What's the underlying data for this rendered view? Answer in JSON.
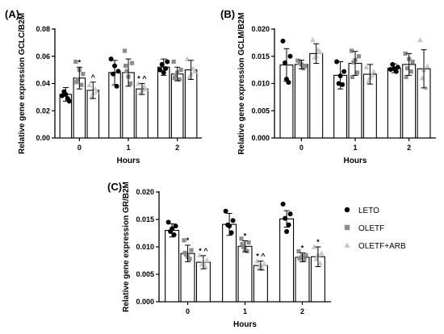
{
  "chart_data": [
    {
      "panel": "(A)",
      "type": "bar",
      "ylabel": "Relative gene expression GCLC/B2M",
      "xlabel": "Hours",
      "categories": [
        "0",
        "1",
        "2"
      ],
      "ylim": [
        0,
        0.08
      ],
      "yticks": [
        "0.00",
        "0.02",
        "0.04",
        "0.06",
        "0.08"
      ],
      "grid": false,
      "series": [
        {
          "name": "LETO",
          "values": [
            0.032,
            0.048,
            0.052
          ],
          "errors": [
            0.005,
            0.009,
            0.006
          ],
          "points": [
            [
              0.031,
              0.027,
              0.034,
              0.029,
              0.032
            ],
            [
              0.058,
              0.049,
              0.047,
              0.038,
              0.053
            ],
            [
              0.05,
              0.056,
              0.054,
              0.051,
              0.048
            ]
          ],
          "annotations": [
            "",
            "",
            ""
          ]
        },
        {
          "name": "OLETF",
          "values": [
            0.044,
            0.048,
            0.047
          ],
          "errors": [
            0.008,
            0.01,
            0.005
          ],
          "points": [
            [
              0.056,
              0.047,
              0.043,
              0.039,
              0.05,
              0.041
            ],
            [
              0.064,
              0.055,
              0.049,
              0.04,
              0.045,
              0.053
            ],
            [
              0.056,
              0.05,
              0.046,
              0.043,
              0.048,
              0.044
            ]
          ],
          "annotations": [
            "*",
            "",
            ""
          ]
        },
        {
          "name": "OLETF+ARB",
          "values": [
            0.035,
            0.036,
            0.05
          ],
          "errors": [
            0.006,
            0.004,
            0.007
          ],
          "points": [
            [
              0.039,
              0.034,
              0.03,
              0.036,
              0.033
            ],
            [
              0.04,
              0.036,
              0.033,
              0.038,
              0.035
            ],
            [
              0.058,
              0.049,
              0.045,
              0.051,
              0.047
            ]
          ],
          "annotations": [
            "^",
            "* ^",
            ""
          ]
        }
      ]
    },
    {
      "panel": "(B)",
      "type": "bar",
      "ylabel": "Relative gene expression GCLM/B2M",
      "xlabel": "Hours",
      "categories": [
        "0",
        "1",
        "2"
      ],
      "ylim": [
        0,
        0.02
      ],
      "yticks": [
        "0.000",
        "0.005",
        "0.010",
        "0.015",
        "0.020"
      ],
      "grid": false,
      "series": [
        {
          "name": "LETO",
          "values": [
            0.0134,
            0.0115,
            0.0128
          ],
          "errors": [
            0.003,
            0.0025,
            0.0008
          ],
          "points": [
            [
              0.0178,
              0.015,
              0.0138,
              0.0102,
              0.0108
            ],
            [
              0.014,
              0.0122,
              0.01,
              0.0098,
              0.0114
            ],
            [
              0.0126,
              0.013,
              0.0135,
              0.0122,
              0.0127
            ]
          ],
          "annotations": [
            "",
            "",
            ""
          ]
        },
        {
          "name": "OLETF",
          "values": [
            0.0135,
            0.0137,
            0.0135
          ],
          "errors": [
            0.0008,
            0.0022,
            0.002
          ],
          "points": [
            [
              0.0142,
              0.0132,
              0.0138,
              0.0128,
              0.0135
            ],
            [
              0.016,
              0.015,
              0.0139,
              0.012,
              0.0143,
              0.0112
            ],
            [
              0.0155,
              0.014,
              0.0128,
              0.0122,
              0.0145,
              0.0112
            ]
          ],
          "annotations": [
            "",
            "",
            ""
          ]
        },
        {
          "name": "OLETF+ARB",
          "values": [
            0.0155,
            0.0117,
            0.0127
          ],
          "errors": [
            0.0018,
            0.0018,
            0.0035
          ],
          "points": [
            [
              0.018,
              0.0158,
              0.0148,
              0.0162,
              0.015
            ],
            [
              0.013,
              0.0122,
              0.0104,
              0.0115,
              0.0111
            ],
            [
              0.018,
              0.0132,
              0.011,
              0.0092,
              0.0125
            ]
          ],
          "annotations": [
            "",
            "",
            ""
          ]
        }
      ]
    },
    {
      "panel": "(C)",
      "type": "bar",
      "ylabel": "Relative gene expression GR/B2M",
      "xlabel": "Hours",
      "categories": [
        "0",
        "1",
        "2"
      ],
      "ylim": [
        0,
        0.02
      ],
      "yticks": [
        "0.000",
        "0.005",
        "0.010",
        "0.015",
        "0.020"
      ],
      "grid": false,
      "legend_position": "right",
      "series": [
        {
          "name": "LETO",
          "values": [
            0.013,
            0.0141,
            0.0151
          ],
          "errors": [
            0.0012,
            0.002,
            0.0015
          ],
          "points": [
            [
              0.0145,
              0.0138,
              0.0128,
              0.0122,
              0.0133
            ],
            [
              0.0165,
              0.0148,
              0.014,
              0.0126,
              0.0138
            ],
            [
              0.0178,
              0.016,
              0.0152,
              0.014,
              0.0128
            ]
          ],
          "annotations": [
            "",
            "",
            ""
          ]
        },
        {
          "name": "OLETF",
          "values": [
            0.0088,
            0.0101,
            0.0081
          ],
          "errors": [
            0.0015,
            0.001,
            0.0008
          ],
          "points": [
            [
              0.0112,
              0.0094,
              0.0086,
              0.0078,
              0.0082,
              0.0089
            ],
            [
              0.0115,
              0.0108,
              0.01,
              0.0092,
              0.0096,
              0.0105
            ],
            [
              0.0092,
              0.0085,
              0.008,
              0.0076,
              0.0083,
              0.0079
            ]
          ],
          "annotations": [
            "*",
            "*",
            "*"
          ]
        },
        {
          "name": "OLETF+ARB",
          "values": [
            0.0072,
            0.0066,
            0.0082
          ],
          "errors": [
            0.0012,
            0.0008,
            0.0018
          ],
          "points": [
            [
              0.0085,
              0.0076,
              0.0068,
              0.0064,
              0.0071
            ],
            [
              0.0074,
              0.0069,
              0.0062,
              0.006,
              0.0066
            ],
            [
              0.01,
              0.0088,
              0.0078,
              0.007,
              0.0086
            ]
          ],
          "annotations": [
            "* ^",
            "* ^",
            "*"
          ]
        }
      ]
    }
  ],
  "legend": {
    "items": [
      {
        "label": "LETO",
        "marker": "circle",
        "color": "#000000"
      },
      {
        "label": "OLETF",
        "marker": "square",
        "color": "#8c8c8c"
      },
      {
        "label": "OLETF+ARB",
        "marker": "triangle",
        "color": "#c8c8c8"
      }
    ]
  },
  "colors": {
    "LETO": "#000000",
    "OLETF": "#8c8c8c",
    "OLETF+ARB": "#c8c8c8",
    "axis": "#000000"
  }
}
